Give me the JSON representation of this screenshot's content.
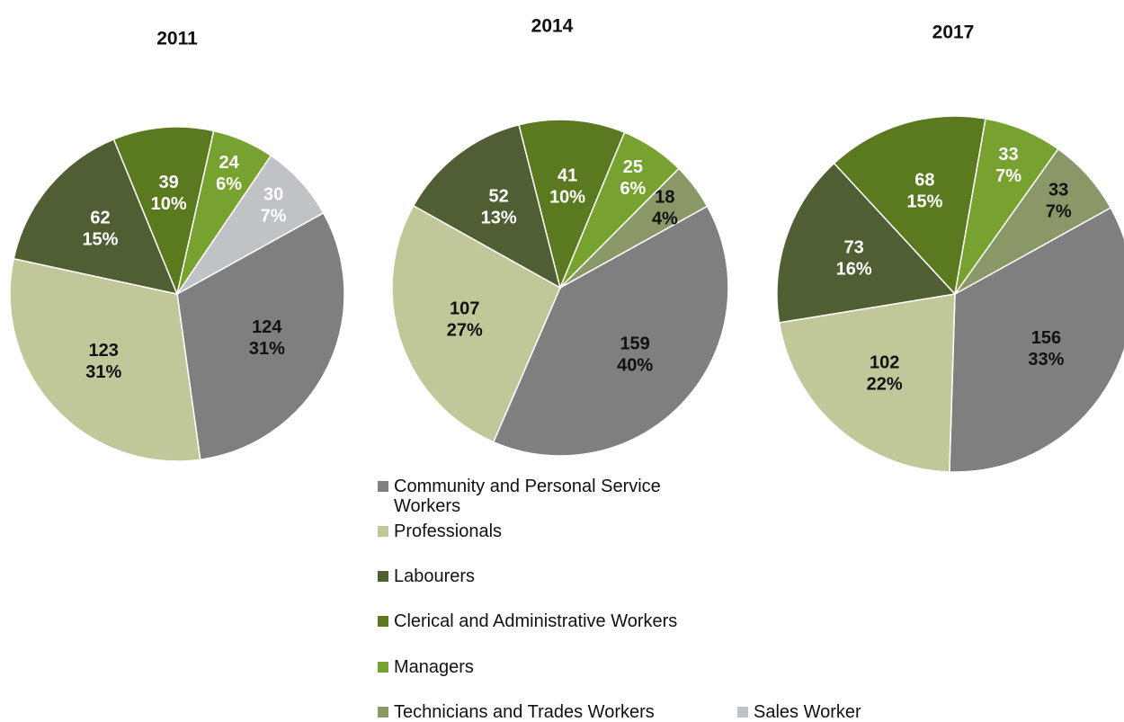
{
  "chart_data": [
    {
      "type": "pie",
      "title": "2011",
      "values": [
        124,
        123,
        62,
        39,
        24,
        null,
        30
      ],
      "percents": [
        31,
        31,
        15,
        10,
        6,
        null,
        7
      ],
      "percent_labels": [
        "31%",
        "31%",
        "15%",
        "10%",
        "6%",
        null,
        "7%"
      ]
    },
    {
      "type": "pie",
      "title": "2014",
      "values": [
        159,
        107,
        52,
        41,
        25,
        18,
        null
      ],
      "percents": [
        40,
        27,
        13,
        10,
        6,
        4,
        null
      ],
      "percent_labels": [
        "40%",
        "27%",
        "13%",
        "10%",
        "6%",
        "4%",
        null
      ]
    },
    {
      "type": "pie",
      "title": "2017",
      "values": [
        156,
        102,
        73,
        68,
        33,
        33,
        null
      ],
      "percents": [
        33,
        22,
        16,
        15,
        7,
        7,
        null
      ],
      "percent_labels": [
        "33%",
        "22%",
        "16%",
        "15%",
        "7%",
        "7%",
        null
      ]
    }
  ],
  "legend": {
    "categories": [
      "Community and Personal Service Workers",
      "Professionals",
      "Labourers",
      "Clerical and Administrative Workers",
      "Managers",
      "Technicians and Trades Workers",
      "Sales Worker"
    ],
    "colors": [
      "#7f7f7f",
      "#c2c79a",
      "#4f5e33",
      "#5b7a1f",
      "#78a22f",
      "#8a9868",
      "#c0c3c6"
    ],
    "label_colors": [
      "#111111",
      "#111111",
      "#ffffff",
      "#ffffff",
      "#ffffff",
      "#111111",
      "#ffffff"
    ]
  }
}
